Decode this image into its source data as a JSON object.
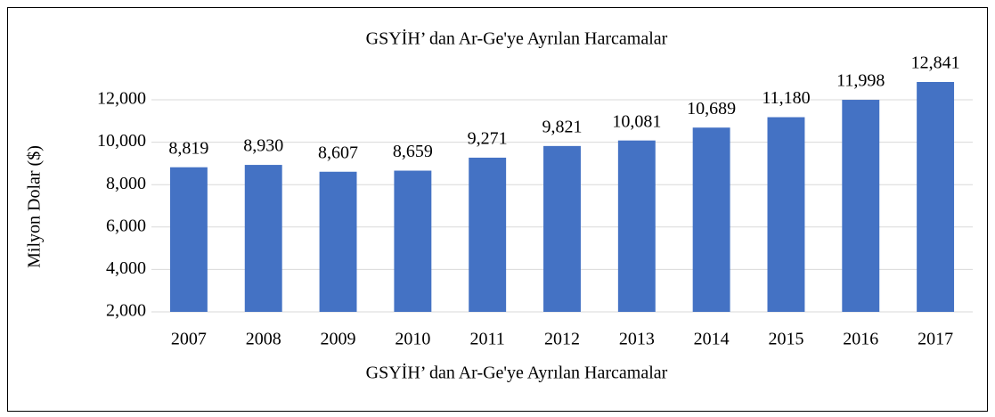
{
  "chart_data": {
    "type": "bar",
    "title": "GSYİH’ dan Ar-Ge'ye Ayrılan Harcamalar",
    "x_label": "GSYİH’ dan Ar-Ge'ye Ayrılan Harcamalar",
    "y_label": "Milyon Dolar ($)",
    "categories": [
      "2007",
      "2008",
      "2009",
      "2010",
      "2011",
      "2012",
      "2013",
      "2014",
      "2015",
      "2016",
      "2017"
    ],
    "values": [
      8819,
      8930,
      8607,
      8659,
      9271,
      9821,
      10081,
      10689,
      11180,
      11998,
      12841
    ],
    "value_labels": [
      "8,819",
      "8,930",
      "8,607",
      "8,659",
      "9,271",
      "9,821",
      "10,081",
      "10,689",
      "11,180",
      "11,998",
      "12,841"
    ],
    "color": "#4472c4",
    "ylim": [
      2000,
      14000
    ],
    "yticks": [
      {
        "value": 2000,
        "label": "2,000"
      },
      {
        "value": 4000,
        "label": "4,000"
      },
      {
        "value": 6000,
        "label": "6,000"
      },
      {
        "value": 8000,
        "label": "8,000"
      },
      {
        "value": 10000,
        "label": "10,000"
      },
      {
        "value": 12000,
        "label": "12,000"
      }
    ],
    "grid": true
  }
}
